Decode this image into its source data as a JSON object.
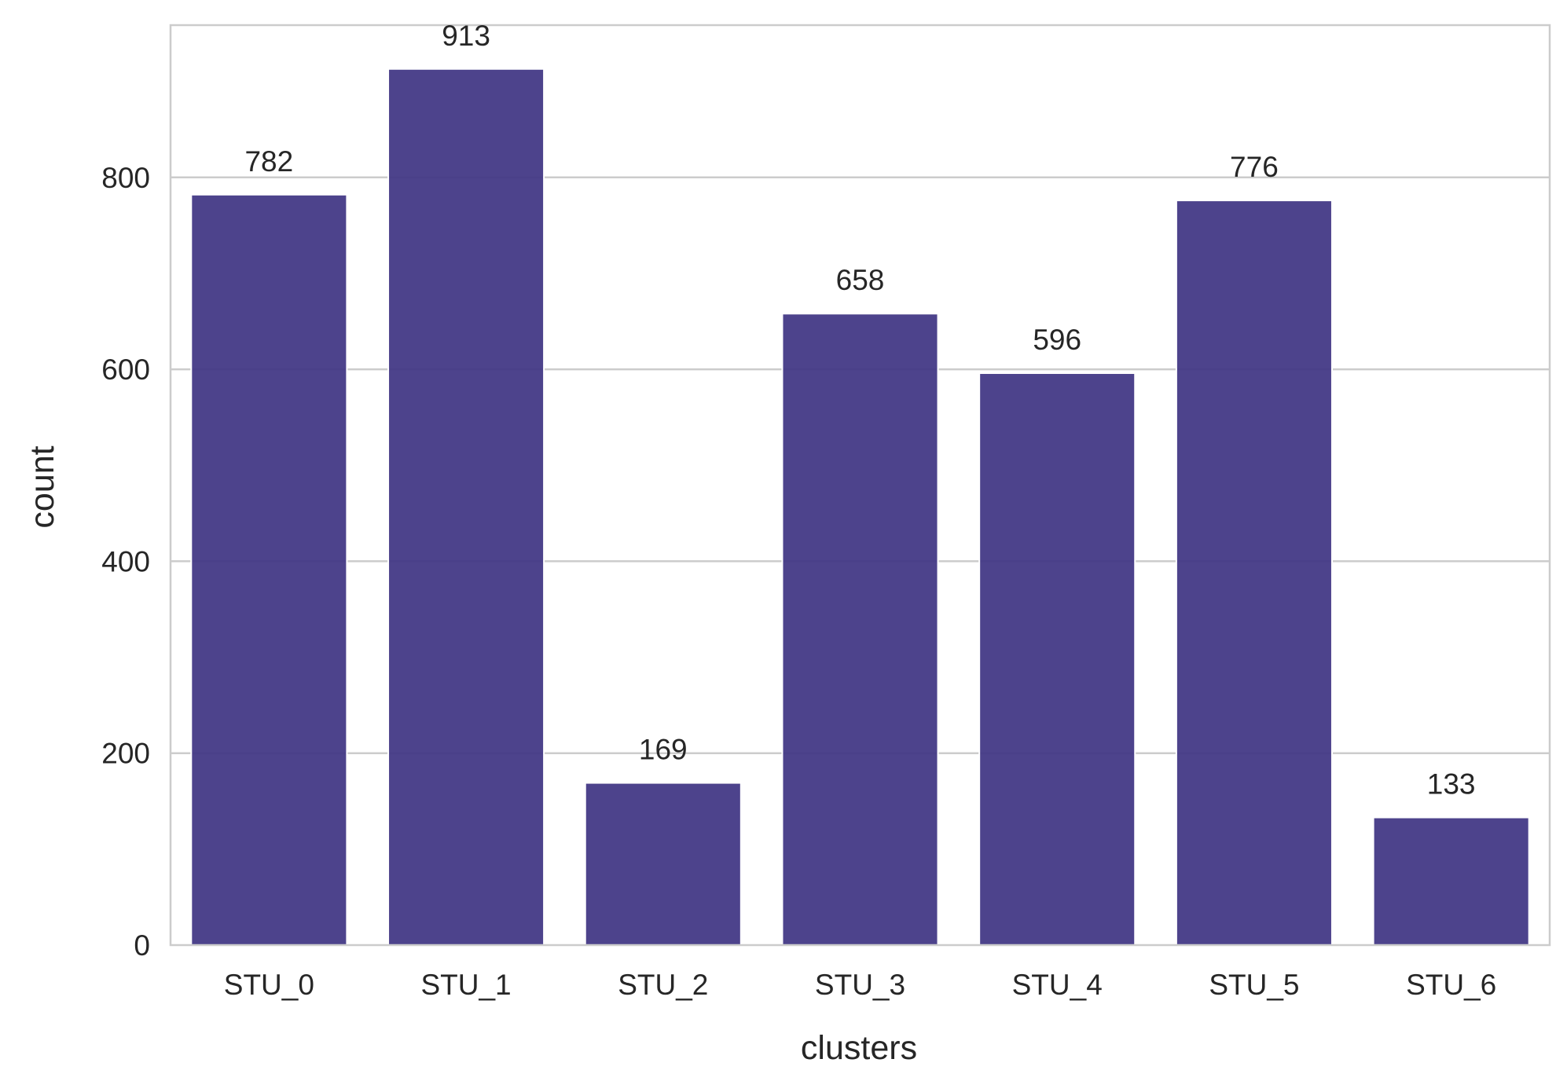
{
  "chart_data": {
    "type": "bar",
    "categories": [
      "STU_0",
      "STU_1",
      "STU_2",
      "STU_3",
      "STU_4",
      "STU_5",
      "STU_6"
    ],
    "values": [
      782,
      913,
      169,
      658,
      596,
      776,
      133
    ],
    "data_labels": [
      "782",
      "913",
      "169",
      "658",
      "596",
      "776",
      "133"
    ],
    "title": "",
    "xlabel": "clusters",
    "ylabel": "count",
    "ylim": [
      0,
      958.65
    ],
    "yticks": [
      0,
      200,
      400,
      600,
      800
    ],
    "ytick_labels": [
      "0",
      "200",
      "400",
      "600",
      "800"
    ],
    "grid": "horizontal",
    "legend": "none",
    "colors": {
      "bar": "#3f3583",
      "grid": "#cccccc",
      "frame": "#cccccc",
      "text": "#262626"
    }
  }
}
